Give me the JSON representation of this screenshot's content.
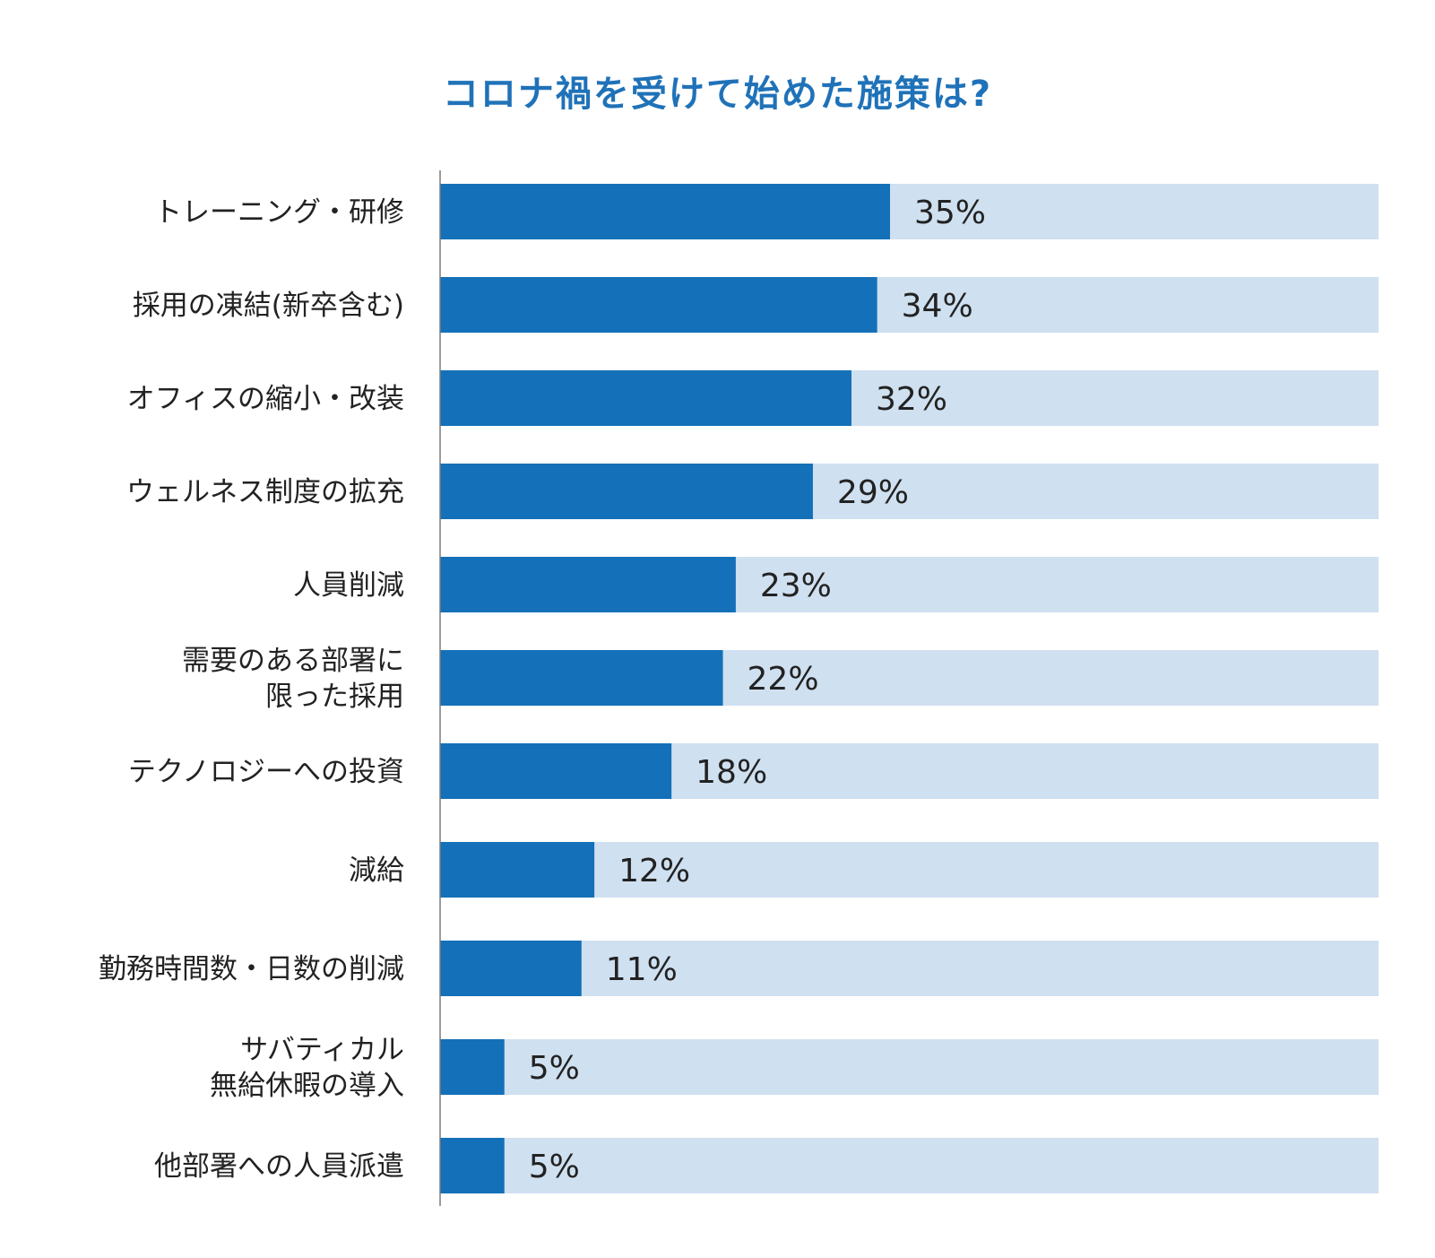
{
  "colors": {
    "title": "#1f72b8",
    "bar": "#1470b8",
    "track": "#cfe0f0",
    "axis": "#7a7a7a",
    "label": "#222222",
    "value": "#222222"
  },
  "chart_data": {
    "type": "bar",
    "orientation": "horizontal",
    "title": "コロナ禍を受けて始めた施策は?",
    "xlim": [
      0,
      73
    ],
    "value_suffix": "%",
    "grid": false,
    "legend": "none",
    "categories": [
      [
        "トレーニング・研修"
      ],
      [
        "採用の凍結(新卒含む)"
      ],
      [
        "オフィスの縮小・改装"
      ],
      [
        "ウェルネス制度の拡充"
      ],
      [
        "人員削減"
      ],
      [
        "需要のある部署に",
        "限った採用"
      ],
      [
        "テクノロジーへの投資"
      ],
      [
        "減給"
      ],
      [
        "勤務時間数・日数の削減"
      ],
      [
        "サバティカル",
        "無給休暇の導入"
      ],
      [
        "他部署への人員派遣"
      ]
    ],
    "values": [
      35,
      34,
      32,
      29,
      23,
      22,
      18,
      12,
      11,
      5,
      5
    ],
    "value_labels": [
      "35%",
      "34%",
      "32%",
      "29%",
      "23%",
      "22%",
      "18%",
      "12%",
      "11%",
      "5%",
      "5%"
    ]
  }
}
